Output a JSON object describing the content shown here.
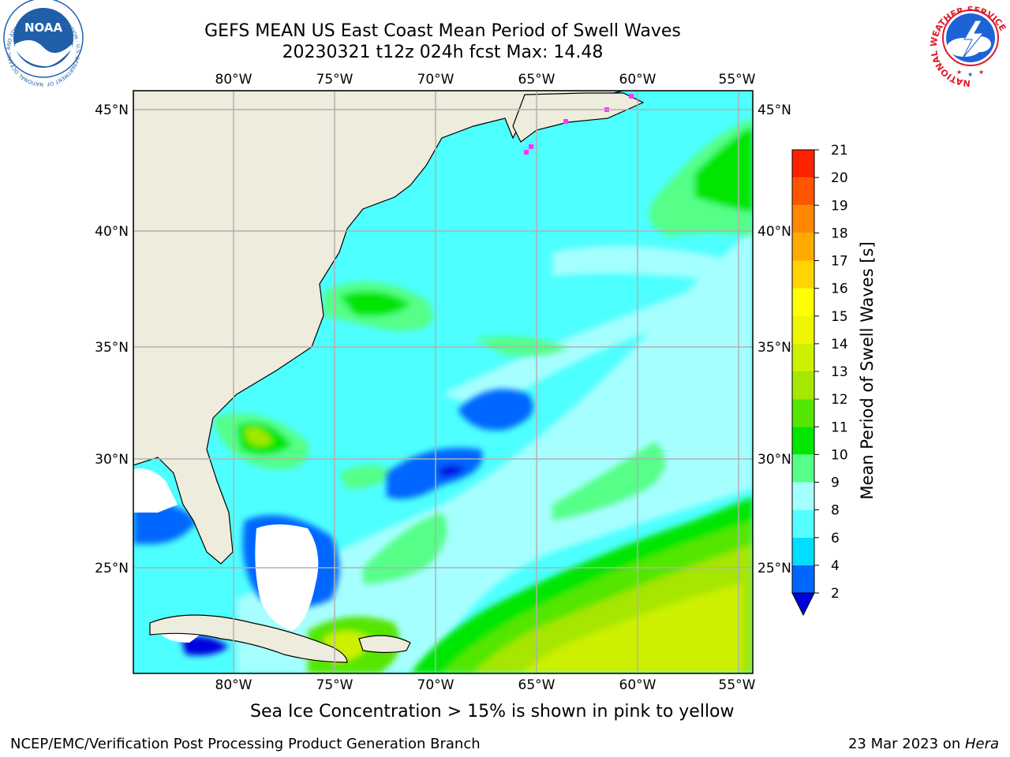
{
  "header": {
    "title_line1": "GEFS MEAN US East Coast Mean Period of Swell Waves",
    "title_line2": "20230321 t12z 024h fcst   Max: 14.48"
  },
  "logos": {
    "left": {
      "text": "NOAA",
      "ring_text": "NATIONAL OCEANIC AND ATMOSPHERIC ADMINISTRATION · U.S. DEPARTMENT OF COMMERCE",
      "color": "#1f5fa8"
    },
    "right": {
      "ring_text": "NATIONAL WEATHER SERVICE",
      "color": "#e0192b"
    }
  },
  "map": {
    "lon_labels": [
      "80°W",
      "75°W",
      "70°W",
      "65°W",
      "60°W",
      "55°W"
    ],
    "lat_labels": [
      "45°N",
      "40°N",
      "35°N",
      "30°N",
      "25°N"
    ],
    "colors": {
      "land": "#eeecdc",
      "ocean_base": "#4dffff",
      "grid": "#b0b0b0",
      "ice": "#ff33ff",
      "nodata": "#ffffff"
    }
  },
  "colorbar": {
    "title": "Mean Period of Swell Waves [s]",
    "tick_labels": [
      "2",
      "4",
      "6",
      "8",
      "9",
      "10",
      "11",
      "12",
      "13",
      "14",
      "15",
      "16",
      "17",
      "18",
      "19",
      "20",
      "21"
    ],
    "bin_colors": [
      "#0066ff",
      "#00ddff",
      "#55ffff",
      "#a6ffff",
      "#55ff88",
      "#00e600",
      "#55e600",
      "#a6e600",
      "#ccf000",
      "#eef500",
      "#ffff00",
      "#ffd400",
      "#ffaa00",
      "#ff8800",
      "#ff5500",
      "#ff2200"
    ],
    "under_color": "#0000dd"
  },
  "subcaption": "Sea Ice Concentration > 15% is shown in pink to yellow",
  "footer": {
    "left": "NCEP/EMC/Verification Post Processing Product Generation Branch",
    "date": "23 Mar 2023 on ",
    "host": "Hera"
  }
}
